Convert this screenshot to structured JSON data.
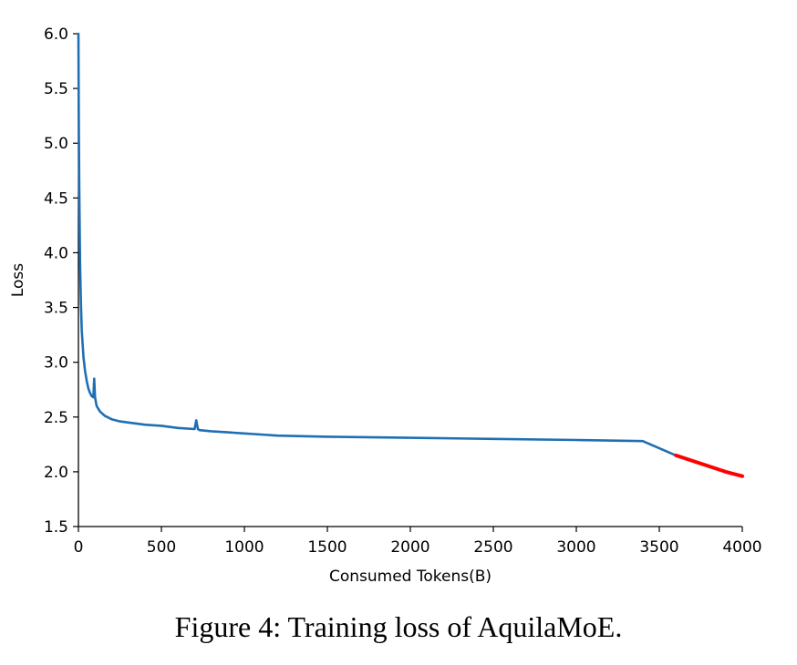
{
  "chart_data": {
    "type": "line",
    "title": "",
    "xlabel": "Consumed Tokens(B)",
    "ylabel": "Loss",
    "xlim": [
      0,
      4000
    ],
    "ylim": [
      1.5,
      6.0
    ],
    "xticks": [
      0,
      500,
      1000,
      1500,
      2000,
      2500,
      3000,
      3500,
      4000
    ],
    "yticks": [
      1.5,
      2.0,
      2.5,
      3.0,
      3.5,
      4.0,
      4.5,
      5.0,
      5.5,
      6.0
    ],
    "ytick_labels": [
      "1.5",
      "2.0",
      "2.5",
      "3.0",
      "3.5",
      "4.0",
      "4.5",
      "5.0",
      "5.5",
      "6.0"
    ],
    "grid": false,
    "series": [
      {
        "color": "#1f6fb4",
        "x": [
          0,
          2,
          5,
          10,
          15,
          20,
          30,
          40,
          50,
          60,
          70,
          80,
          90,
          95,
          100,
          105,
          110,
          130,
          160,
          200,
          250,
          300,
          400,
          500,
          600,
          700,
          710,
          720,
          730,
          800,
          900,
          1000,
          1100,
          1200,
          1500,
          2000,
          2500,
          3000,
          3400,
          3600
        ],
        "y": [
          6.0,
          5.2,
          4.6,
          3.9,
          3.55,
          3.3,
          3.05,
          2.92,
          2.83,
          2.76,
          2.72,
          2.69,
          2.68,
          2.85,
          2.68,
          2.64,
          2.6,
          2.55,
          2.51,
          2.48,
          2.46,
          2.45,
          2.43,
          2.42,
          2.4,
          2.39,
          2.47,
          2.39,
          2.38,
          2.37,
          2.36,
          2.35,
          2.34,
          2.33,
          2.32,
          2.31,
          2.3,
          2.29,
          2.28,
          2.15
        ]
      },
      {
        "color": "#ff0000",
        "x": [
          3600,
          3700,
          3800,
          3900,
          4000
        ],
        "y": [
          2.15,
          2.1,
          2.05,
          2.0,
          1.96
        ]
      }
    ]
  },
  "caption": "Figure 4: Training loss of AquilaMoE."
}
